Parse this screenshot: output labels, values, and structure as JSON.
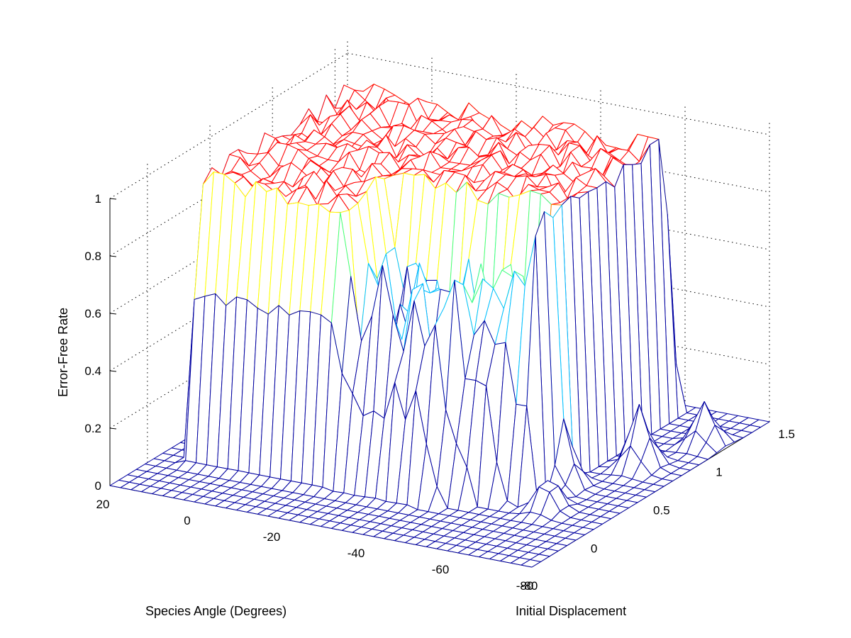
{
  "chart_data": {
    "type": "surface3d",
    "title": "",
    "xlabel": "Species Angle (Degrees)",
    "ylabel": "Initial Displacement",
    "zlabel": "Error-Free Rate",
    "xlim": [
      -80,
      20
    ],
    "ylim": [
      -0.3,
      1.7
    ],
    "zlim": [
      0,
      1
    ],
    "x_ticks": [
      "20",
      "0",
      "-20",
      "-40",
      "-60",
      "-80",
      "-80"
    ],
    "y_ticks": [
      "0",
      "0.5",
      "1",
      "1.5"
    ],
    "z_ticks": [
      "0",
      "0.2",
      "0.4",
      "0.6",
      "0.8",
      "1"
    ],
    "grid": true,
    "colormap": [
      "#0000a0",
      "#00c0ff",
      "#40ff80",
      "#ffff00",
      "#ff8000",
      "#ff0000"
    ],
    "surface": {
      "x_range": [
        20,
        -80
      ],
      "y_range": [
        -0.3,
        1.6
      ],
      "nx": 40,
      "ny": 27,
      "plateau_center_x": -32,
      "plateau_center_y": 0.8,
      "plateau_height": 1.0,
      "edge_angle_low": 14,
      "edge_angle_high": -62,
      "spike_peaks": [
        {
          "x": -62,
          "y": 0.55,
          "z": 0.25
        },
        {
          "x": -70,
          "y": 0.9,
          "z": 0.22
        },
        {
          "x": -75,
          "y": 1.25,
          "z": 0.15
        },
        {
          "x": -66,
          "y": 0.3,
          "z": 0.12
        }
      ]
    }
  }
}
